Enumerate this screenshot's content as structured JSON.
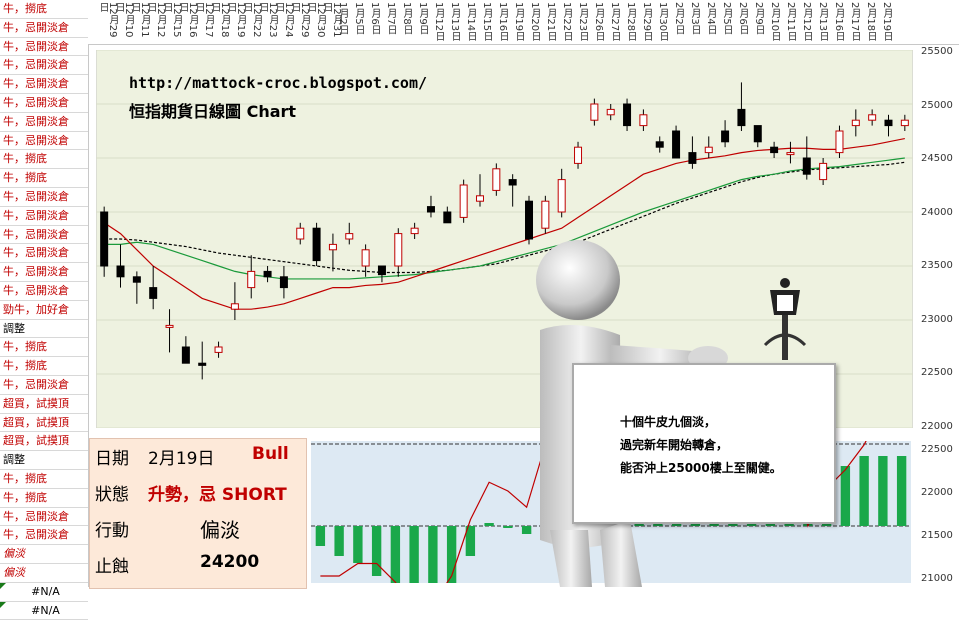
{
  "left_labels": [
    {
      "t": "牛，撈底",
      "c": "red"
    },
    {
      "t": "牛，忌開淡倉",
      "c": "red"
    },
    {
      "t": "牛，忌開淡倉",
      "c": "red"
    },
    {
      "t": "牛，忌開淡倉",
      "c": "red"
    },
    {
      "t": "牛，忌開淡倉",
      "c": "red"
    },
    {
      "t": "牛，忌開淡倉",
      "c": "red"
    },
    {
      "t": "牛，忌開淡倉",
      "c": "red"
    },
    {
      "t": "牛，忌開淡倉",
      "c": "red"
    },
    {
      "t": "牛，撈底",
      "c": "red"
    },
    {
      "t": "牛，撈底",
      "c": "red"
    },
    {
      "t": "牛，忌開淡倉",
      "c": "red"
    },
    {
      "t": "牛，忌開淡倉",
      "c": "red"
    },
    {
      "t": "牛，忌開淡倉",
      "c": "red"
    },
    {
      "t": "牛，忌開淡倉",
      "c": "red"
    },
    {
      "t": "牛，忌開淡倉",
      "c": "red"
    },
    {
      "t": "牛，忌開淡倉",
      "c": "red"
    },
    {
      "t": "勁牛，加好倉",
      "c": "red"
    },
    {
      "t": "調整",
      "c": "blk"
    },
    {
      "t": "牛，撈底",
      "c": "red"
    },
    {
      "t": "牛，撈底",
      "c": "red"
    },
    {
      "t": "牛，忌開淡倉",
      "c": "red"
    },
    {
      "t": "超買，試摸頂",
      "c": "red"
    },
    {
      "t": "超買，試摸頂",
      "c": "red"
    },
    {
      "t": "超買，試摸頂",
      "c": "red"
    },
    {
      "t": "調整",
      "c": "blk"
    },
    {
      "t": "牛，撈底",
      "c": "red"
    },
    {
      "t": "牛，撈底",
      "c": "red"
    },
    {
      "t": "牛，忌開淡倉",
      "c": "red"
    },
    {
      "t": "牛，忌開淡倉",
      "c": "red"
    },
    {
      "t": "偏淡",
      "c": "it"
    },
    {
      "t": "偏淡",
      "c": "it"
    },
    {
      "t": "#N/A",
      "c": "na"
    },
    {
      "t": "#N/A",
      "c": "na"
    }
  ],
  "dates": [
    "12月29日",
    "12月10日",
    "12月11日",
    "12月12日",
    "12月15日",
    "12月16日",
    "12月17日",
    "12月18日",
    "12月19日",
    "12月22日",
    "12月23日",
    "12月24日",
    "12月29日",
    "12月30日",
    "12月31日",
    "1月2日",
    "1月5日",
    "1月6日",
    "1月7日",
    "1月8日",
    "1月9日",
    "1月12日",
    "1月13日",
    "1月14日",
    "1月15日",
    "1月16日",
    "1月19日",
    "1月20日",
    "1月21日",
    "1月22日",
    "1月23日",
    "1月26日",
    "1月27日",
    "1月28日",
    "1月29日",
    "1月30日",
    "2月2日",
    "2月3日",
    "2月4日",
    "2月5日",
    "2月6日",
    "2月9日",
    "2月10日",
    "2月11日",
    "2月12日",
    "2月13日",
    "2月16日",
    "2月17日",
    "2月18日",
    "2月19日"
  ],
  "url": "http://mattock-croc.blogspot.com/",
  "title": "恒指期貨日線圖 Chart",
  "info": {
    "date_label": "日期",
    "date_value": "2月19日",
    "date_tag": "Bull",
    "state_label": "狀態",
    "state_value": "升勢，忌 SHORT",
    "action_label": "行動",
    "action_value": "偏淡",
    "stop_label": "止蝕",
    "stop_value": "24200"
  },
  "board_text": [
    "十個牛皮九個淡，",
    "過完新年開始轉倉，",
    "能否沖上25000樓上至關健。"
  ],
  "y_ticks_main": [
    "25500",
    "25000",
    "24500",
    "24000",
    "23500",
    "23000",
    "22500",
    "22000"
  ],
  "y_ticks_osc": [
    "22500",
    "22000",
    "21500",
    "21000"
  ],
  "colors": {
    "up": "#ffffff",
    "down": "#000000",
    "candle_up_border": "#c00000",
    "ma_fast": "#c00000",
    "ma_mid": "#1a9a3a",
    "ma_slow": "#000000",
    "band": "#c00000",
    "osc_bar": "#1aa84a",
    "bg_main": "#eef2e0",
    "bg_osc": "#dde9f3"
  },
  "chart_data": {
    "type": "candlestick",
    "ylim": [
      22000,
      25500
    ],
    "candles": [
      {
        "o": 24000,
        "h": 24050,
        "l": 23400,
        "c": 23500
      },
      {
        "o": 23500,
        "h": 23700,
        "l": 23300,
        "c": 23400
      },
      {
        "o": 23400,
        "h": 23450,
        "l": 23150,
        "c": 23350
      },
      {
        "o": 23300,
        "h": 23500,
        "l": 23100,
        "c": 23200
      },
      {
        "o": 22950,
        "h": 23100,
        "l": 22700,
        "c": 22950
      },
      {
        "o": 22750,
        "h": 22850,
        "l": 22600,
        "c": 22600
      },
      {
        "o": 22600,
        "h": 22800,
        "l": 22450,
        "c": 22580
      },
      {
        "o": 22700,
        "h": 22800,
        "l": 22650,
        "c": 22750
      },
      {
        "o": 23100,
        "h": 23350,
        "l": 23000,
        "c": 23150
      },
      {
        "o": 23300,
        "h": 23600,
        "l": 23200,
        "c": 23450
      },
      {
        "o": 23450,
        "h": 23500,
        "l": 23350,
        "c": 23400
      },
      {
        "o": 23400,
        "h": 23500,
        "l": 23200,
        "c": 23300
      },
      {
        "o": 23750,
        "h": 23900,
        "l": 23700,
        "c": 23850
      },
      {
        "o": 23850,
        "h": 23900,
        "l": 23500,
        "c": 23550
      },
      {
        "o": 23650,
        "h": 23800,
        "l": 23450,
        "c": 23700
      },
      {
        "o": 23750,
        "h": 23900,
        "l": 23700,
        "c": 23800
      },
      {
        "o": 23500,
        "h": 23700,
        "l": 23400,
        "c": 23650
      },
      {
        "o": 23500,
        "h": 23500,
        "l": 23350,
        "c": 23420
      },
      {
        "o": 23500,
        "h": 23850,
        "l": 23400,
        "c": 23800
      },
      {
        "o": 23800,
        "h": 23900,
        "l": 23750,
        "c": 23850
      },
      {
        "o": 24050,
        "h": 24150,
        "l": 23950,
        "c": 24000
      },
      {
        "o": 24000,
        "h": 24050,
        "l": 23900,
        "c": 23900
      },
      {
        "o": 23950,
        "h": 24300,
        "l": 23900,
        "c": 24250
      },
      {
        "o": 24100,
        "h": 24350,
        "l": 24050,
        "c": 24150
      },
      {
        "o": 24200,
        "h": 24450,
        "l": 24150,
        "c": 24400
      },
      {
        "o": 24300,
        "h": 24350,
        "l": 24050,
        "c": 24250
      },
      {
        "o": 24100,
        "h": 24150,
        "l": 23700,
        "c": 23750
      },
      {
        "o": 23850,
        "h": 24150,
        "l": 23800,
        "c": 24100
      },
      {
        "o": 24000,
        "h": 24400,
        "l": 23950,
        "c": 24300
      },
      {
        "o": 24450,
        "h": 24650,
        "l": 24400,
        "c": 24600
      },
      {
        "o": 24850,
        "h": 25050,
        "l": 24800,
        "c": 25000
      },
      {
        "o": 24900,
        "h": 25000,
        "l": 24850,
        "c": 24950
      },
      {
        "o": 25000,
        "h": 25050,
        "l": 24750,
        "c": 24800
      },
      {
        "o": 24800,
        "h": 24950,
        "l": 24750,
        "c": 24900
      },
      {
        "o": 24650,
        "h": 24700,
        "l": 24550,
        "c": 24600
      },
      {
        "o": 24750,
        "h": 24800,
        "l": 24500,
        "c": 24500
      },
      {
        "o": 24550,
        "h": 24700,
        "l": 24400,
        "c": 24450
      },
      {
        "o": 24550,
        "h": 24700,
        "l": 24500,
        "c": 24600
      },
      {
        "o": 24750,
        "h": 24850,
        "l": 24600,
        "c": 24650
      },
      {
        "o": 24950,
        "h": 25200,
        "l": 24750,
        "c": 24800
      },
      {
        "o": 24800,
        "h": 24800,
        "l": 24600,
        "c": 24650
      },
      {
        "o": 24600,
        "h": 24650,
        "l": 24500,
        "c": 24550
      },
      {
        "o": 24550,
        "h": 24650,
        "l": 24450,
        "c": 24550
      },
      {
        "o": 24500,
        "h": 24700,
        "l": 24300,
        "c": 24350
      },
      {
        "o": 24300,
        "h": 24500,
        "l": 24250,
        "c": 24450
      },
      {
        "o": 24550,
        "h": 24800,
        "l": 24500,
        "c": 24750
      },
      {
        "o": 24800,
        "h": 24950,
        "l": 24700,
        "c": 24850
      },
      {
        "o": 24850,
        "h": 24950,
        "l": 24800,
        "c": 24900
      },
      {
        "o": 24850,
        "h": 24900,
        "l": 24700,
        "c": 24800
      },
      {
        "o": 24800,
        "h": 24900,
        "l": 24750,
        "c": 24850
      }
    ],
    "ma_fast": [
      23900,
      23800,
      23650,
      23500,
      23400,
      23300,
      23200,
      23150,
      23100,
      23100,
      23120,
      23150,
      23200,
      23250,
      23300,
      23300,
      23320,
      23330,
      23350,
      23400,
      23450,
      23500,
      23550,
      23600,
      23650,
      23700,
      23750,
      23800,
      23850,
      23950,
      24050,
      24150,
      24250,
      24350,
      24400,
      24450,
      24480,
      24500,
      24520,
      24550,
      24570,
      24580,
      24590,
      24590,
      24580,
      24580,
      24600,
      24620,
      24650,
      24680
    ],
    "ma_mid": [
      23700,
      23700,
      23720,
      23700,
      23650,
      23600,
      23550,
      23500,
      23450,
      23420,
      23400,
      23380,
      23380,
      23380,
      23380,
      23380,
      23390,
      23400,
      23410,
      23420,
      23440,
      23460,
      23480,
      23500,
      23540,
      23580,
      23620,
      23660,
      23700,
      23760,
      23820,
      23880,
      23940,
      24000,
      24050,
      24100,
      24150,
      24200,
      24250,
      24300,
      24330,
      24350,
      24380,
      24400,
      24410,
      24420,
      24440,
      24460,
      24480,
      24500
    ],
    "ma_slow": [
      23750,
      23750,
      23740,
      23720,
      23700,
      23680,
      23650,
      23620,
      23600,
      23580,
      23560,
      23540,
      23520,
      23500,
      23480,
      23460,
      23450,
      23440,
      23440,
      23440,
      23450,
      23460,
      23480,
      23500,
      23520,
      23560,
      23600,
      23640,
      23680,
      23720,
      23780,
      23840,
      23900,
      23960,
      24020,
      24080,
      24130,
      24180,
      24230,
      24280,
      24320,
      24350,
      24370,
      24390,
      24400,
      24410,
      24420,
      24430,
      24440,
      24460
    ]
  }
}
